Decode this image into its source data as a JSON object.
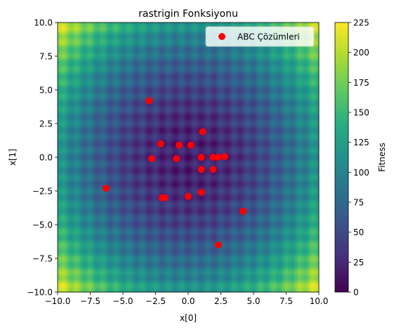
{
  "chart_data": {
    "type": "heatmap",
    "title": "rastrigin Fonksiyonu",
    "xlabel": "x[0]",
    "ylabel": "x[1]",
    "xlim": [
      -10,
      10
    ],
    "ylim": [
      -10,
      10
    ],
    "x_ticks": [
      "−10.0",
      "−7.5",
      "−5.0",
      "−2.5",
      "0.0",
      "2.5",
      "5.0",
      "7.5",
      "10.0"
    ],
    "y_ticks": [
      "−10.0",
      "−7.5",
      "−5.0",
      "−2.5",
      "0.0",
      "2.5",
      "5.0",
      "7.5",
      "10.0"
    ],
    "colorbar": {
      "label": "Fitness",
      "range": [
        0,
        225
      ],
      "ticks": [
        "0",
        "25",
        "50",
        "75",
        "100",
        "125",
        "150",
        "175",
        "200",
        "225"
      ],
      "colormap": "viridis"
    },
    "function": "rastrigin",
    "grid": false,
    "legend_position": "top-right",
    "series": [
      {
        "name": "ABC Çözümleri",
        "color": "#ff0000",
        "points": [
          [
            -3.0,
            4.2
          ],
          [
            1.1,
            1.9
          ],
          [
            -2.1,
            1.0
          ],
          [
            -0.7,
            0.9
          ],
          [
            0.2,
            0.9
          ],
          [
            -2.8,
            -0.1
          ],
          [
            -0.9,
            -0.1
          ],
          [
            1.0,
            0.0
          ],
          [
            1.9,
            0.0
          ],
          [
            2.3,
            0.0
          ],
          [
            2.8,
            0.05
          ],
          [
            1.0,
            -0.9
          ],
          [
            1.9,
            -0.9
          ],
          [
            -6.3,
            -2.3
          ],
          [
            1.0,
            -2.6
          ],
          [
            0.0,
            -2.9
          ],
          [
            -2.0,
            -3.0
          ],
          [
            -1.8,
            -3.0
          ],
          [
            4.2,
            -4.0
          ],
          [
            2.3,
            -6.5
          ]
        ]
      }
    ]
  }
}
